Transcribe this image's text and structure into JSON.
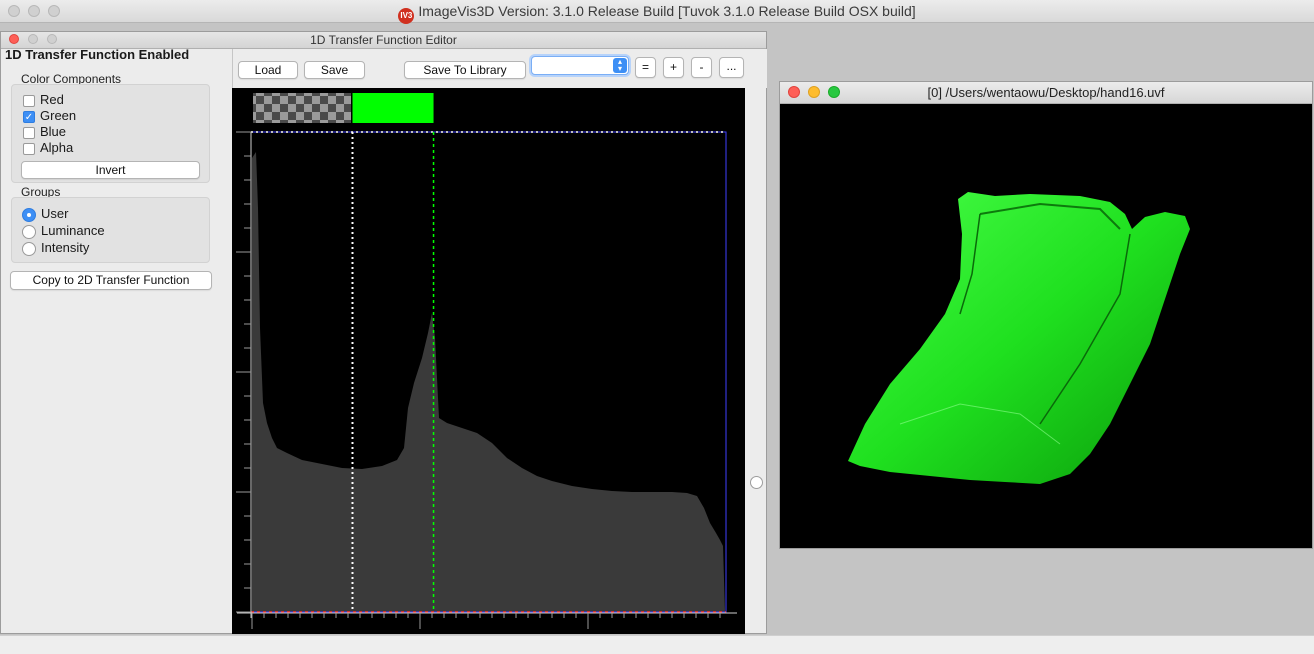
{
  "app": {
    "title": "ImageVis3D Version: 3.1.0 Release Build [Tuvok 3.1.0 Release Build OSX build]",
    "logo_text": "IV3"
  },
  "editor": {
    "title": "1D Transfer Function Editor",
    "heading": "1D Transfer Function Enabled",
    "color_components": {
      "label": "Color Components",
      "items": [
        {
          "label": "Red",
          "checked": false
        },
        {
          "label": "Green",
          "checked": true
        },
        {
          "label": "Blue",
          "checked": false
        },
        {
          "label": "Alpha",
          "checked": false
        }
      ],
      "invert_label": "Invert"
    },
    "groups": {
      "label": "Groups",
      "items": [
        {
          "label": "User",
          "selected": true
        },
        {
          "label": "Luminance",
          "selected": false
        },
        {
          "label": "Intensity",
          "selected": false
        }
      ]
    },
    "copy_button": "Copy to 2D Transfer Function",
    "toolbar": {
      "load": "Load",
      "save": "Save",
      "save_to_library": "Save To Library",
      "library_selection": "",
      "equal": "=",
      "plus": "+",
      "minus": "-",
      "more": "..."
    },
    "transfer_function": {
      "color_ramp": "#00ff00",
      "histogram_color": "#3a3a3a",
      "marker_white_fraction": 0.212,
      "marker_green_fraction": 0.383
    }
  },
  "render": {
    "title": "[0] /Users/wentaowu/Desktop/hand16.uvf",
    "model_color": "#1fe01f"
  }
}
